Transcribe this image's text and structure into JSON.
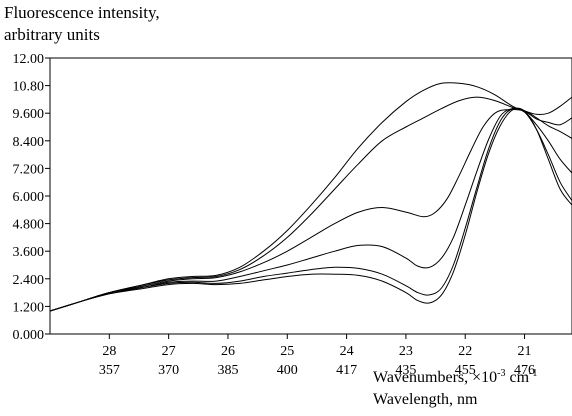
{
  "chart_data": {
    "type": "line",
    "ylabel_line1": "Fluorescence intensity,",
    "ylabel_line2": "arbitrary units",
    "xlabel_top_text": "Wavenumbers, ×10",
    "xlabel_top_exp": "-3",
    "xlabel_top_unit": " cm",
    "xlabel_top_unit_exp": "-1",
    "xlabel_bottom": "Wavelength, nm",
    "xlim": [
      29.0,
      20.2
    ],
    "ylim": [
      0,
      12.0
    ],
    "yticks": [
      0,
      1.2,
      2.4,
      3.6,
      4.8,
      6.0,
      7.2,
      8.4,
      9.6,
      10.8,
      12.0
    ],
    "ytick_labels": [
      "0.000",
      "1.200",
      "2.400",
      "3.600",
      "4.800",
      "6.000",
      "7.200",
      "8.400",
      "9.600",
      "10.80",
      "12.00"
    ],
    "xticks_wavenumber": [
      28,
      27,
      26,
      25,
      24,
      23,
      22,
      21
    ],
    "xtick_labels_wavenumber": [
      "28",
      "27",
      "26",
      "25",
      "24",
      "23",
      "22",
      "21"
    ],
    "xtick_labels_wavelength": [
      "357",
      "370",
      "385",
      "400",
      "417",
      "435",
      "455",
      "476"
    ],
    "grid": false,
    "series": [
      {
        "x": [
          29.0,
          28.5,
          28.0,
          27.5,
          27.0,
          26.6,
          26.2,
          25.8,
          25.4,
          25.0,
          24.6,
          24.2,
          23.8,
          23.4,
          23.0,
          22.7,
          22.4,
          22.1,
          21.8,
          21.5,
          21.2,
          21.0,
          20.8,
          20.6,
          20.4,
          20.2
        ],
        "values": [
          1.0,
          1.4,
          1.8,
          2.1,
          2.4,
          2.5,
          2.55,
          2.9,
          3.6,
          4.5,
          5.6,
          6.8,
          8.1,
          9.2,
          10.1,
          10.6,
          10.9,
          10.9,
          10.75,
          10.4,
          9.9,
          9.7,
          9.55,
          9.6,
          9.9,
          10.3
        ]
      },
      {
        "x": [
          29.0,
          28.5,
          28.0,
          27.5,
          27.0,
          26.6,
          26.2,
          25.8,
          25.4,
          25.0,
          24.6,
          24.2,
          23.8,
          23.4,
          23.0,
          22.7,
          22.4,
          22.1,
          21.8,
          21.5,
          21.2,
          21.0,
          20.8,
          20.6,
          20.4,
          20.2
        ],
        "values": [
          1.0,
          1.4,
          1.8,
          2.1,
          2.35,
          2.45,
          2.5,
          2.8,
          3.4,
          4.2,
          5.2,
          6.3,
          7.4,
          8.4,
          9.0,
          9.4,
          9.8,
          10.15,
          10.3,
          10.15,
          9.85,
          9.7,
          9.35,
          9.2,
          9.1,
          9.4
        ]
      },
      {
        "x": [
          29.0,
          28.5,
          28.0,
          27.5,
          27.0,
          26.6,
          26.2,
          25.8,
          25.4,
          25.0,
          24.6,
          24.2,
          23.8,
          23.4,
          23.0,
          22.7,
          22.5,
          22.3,
          22.1,
          21.9,
          21.7,
          21.5,
          21.3,
          21.0,
          20.8,
          20.6,
          20.4,
          20.2
        ],
        "values": [
          1.0,
          1.4,
          1.8,
          2.05,
          2.3,
          2.4,
          2.45,
          2.7,
          3.1,
          3.6,
          4.2,
          4.8,
          5.3,
          5.5,
          5.3,
          5.1,
          5.3,
          5.9,
          6.9,
          8.0,
          9.0,
          9.6,
          9.75,
          9.7,
          9.4,
          9.05,
          8.8,
          8.5
        ]
      },
      {
        "x": [
          29.0,
          28.5,
          28.0,
          27.5,
          27.0,
          26.6,
          26.2,
          25.8,
          25.4,
          25.0,
          24.6,
          24.2,
          23.8,
          23.4,
          23.0,
          22.8,
          22.6,
          22.4,
          22.2,
          22.0,
          21.8,
          21.6,
          21.4,
          21.2,
          21.0,
          20.8,
          20.6,
          20.4,
          20.2
        ],
        "values": [
          1.0,
          1.4,
          1.8,
          2.0,
          2.25,
          2.3,
          2.3,
          2.5,
          2.75,
          3.0,
          3.3,
          3.6,
          3.85,
          3.8,
          3.3,
          2.95,
          2.9,
          3.3,
          4.2,
          5.6,
          7.1,
          8.5,
          9.5,
          9.8,
          9.65,
          9.1,
          8.4,
          7.6,
          7.0
        ]
      },
      {
        "x": [
          29.0,
          28.5,
          28.0,
          27.5,
          27.0,
          26.6,
          26.2,
          25.8,
          25.4,
          25.0,
          24.6,
          24.2,
          23.8,
          23.4,
          23.0,
          22.8,
          22.6,
          22.4,
          22.2,
          22.0,
          21.8,
          21.6,
          21.4,
          21.2,
          21.0,
          20.8,
          20.6,
          20.4,
          20.2
        ],
        "values": [
          1.0,
          1.4,
          1.75,
          2.0,
          2.2,
          2.25,
          2.2,
          2.3,
          2.5,
          2.65,
          2.8,
          2.9,
          2.85,
          2.6,
          2.1,
          1.8,
          1.7,
          2.0,
          3.0,
          4.6,
          6.4,
          8.1,
          9.3,
          9.8,
          9.65,
          8.9,
          7.8,
          6.6,
          5.8
        ]
      },
      {
        "x": [
          29.0,
          28.5,
          28.0,
          27.5,
          27.0,
          26.6,
          26.2,
          25.8,
          25.4,
          25.0,
          24.6,
          24.2,
          23.8,
          23.4,
          23.0,
          22.8,
          22.6,
          22.4,
          22.2,
          22.0,
          21.8,
          21.6,
          21.4,
          21.2,
          21.0,
          20.8,
          20.6,
          20.4,
          20.2
        ],
        "values": [
          1.0,
          1.4,
          1.75,
          1.95,
          2.15,
          2.2,
          2.15,
          2.2,
          2.35,
          2.5,
          2.6,
          2.6,
          2.55,
          2.3,
          1.8,
          1.45,
          1.35,
          1.7,
          2.7,
          4.3,
          6.2,
          7.9,
          9.1,
          9.75,
          9.7,
          8.9,
          7.6,
          6.3,
          5.6
        ]
      }
    ]
  }
}
